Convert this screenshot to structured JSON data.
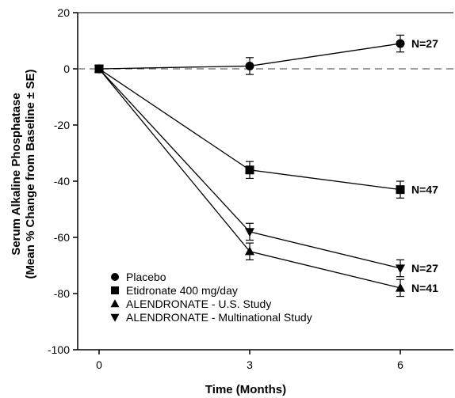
{
  "chart_data": {
    "type": "line",
    "xlabel": "Time (Months)",
    "ylabel_line1": "Serum Alkaline Phosphatase",
    "ylabel_line2": "(Mean % Change from Baseline ± SE)",
    "xlim": [
      0,
      6
    ],
    "ylim": [
      -100,
      20
    ],
    "x_ticks": [
      0,
      3,
      6
    ],
    "y_ticks": [
      20,
      0,
      -20,
      -40,
      -60,
      -80,
      -100
    ],
    "x_tick_labels": [
      "0",
      "3",
      "6"
    ],
    "y_tick_labels": [
      "20",
      "0",
      "-20",
      "-40",
      "-60",
      "-80",
      "-100"
    ],
    "reference_line": {
      "y": 0,
      "style": "dashed"
    },
    "legend_position": "bottom-left",
    "series": [
      {
        "name": "Placebo",
        "marker": "circle",
        "x": [
          0,
          3,
          6
        ],
        "y": [
          0,
          1,
          9
        ],
        "error": [
          0,
          3,
          3
        ],
        "end_label": "N=27"
      },
      {
        "name": "Etidronate 400 mg/day",
        "marker": "square",
        "x": [
          0,
          3,
          6
        ],
        "y": [
          0,
          -36,
          -43
        ],
        "error": [
          0,
          3,
          3
        ],
        "end_label": "N=47"
      },
      {
        "name": "ALENDRONATE - U.S. Study",
        "marker": "triangle-up",
        "x": [
          0,
          3,
          6
        ],
        "y": [
          0,
          -65,
          -78
        ],
        "error": [
          0,
          3,
          3
        ],
        "end_label": "N=41"
      },
      {
        "name": "ALENDRONATE - Multinational Study",
        "marker": "triangle-down",
        "x": [
          0,
          3,
          6
        ],
        "y": [
          0,
          -58,
          -71
        ],
        "error": [
          0,
          3,
          3
        ],
        "end_label": "N=27"
      }
    ]
  }
}
